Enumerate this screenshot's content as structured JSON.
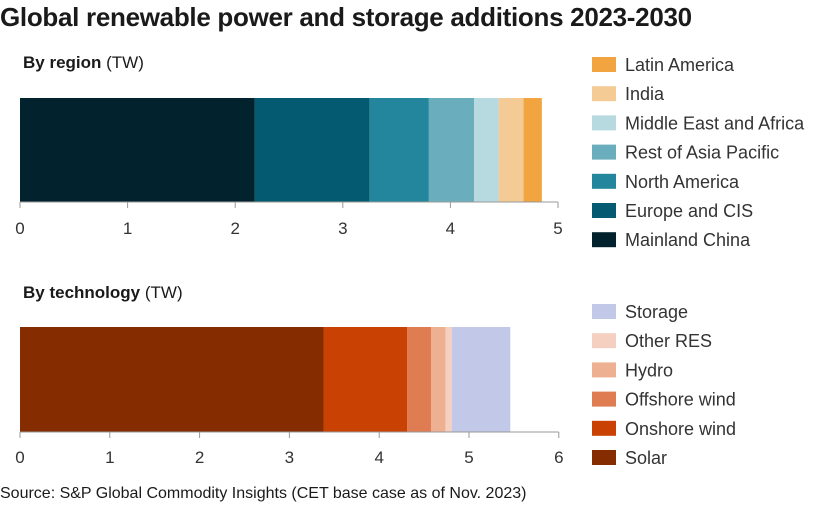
{
  "title": "Global renewable power and storage additions 2023-2030",
  "source": "Source: S&P Global Commodity Insights (CET base case as of Nov. 2023)",
  "chart_data": [
    {
      "type": "bar",
      "orientation": "horizontal",
      "stacked": true,
      "title": "By region",
      "unit": "(TW)",
      "xlim": [
        0,
        5
      ],
      "ticks": [
        "0",
        "1",
        "2",
        "3",
        "4",
        "5"
      ],
      "legend_position": "right",
      "series": [
        {
          "name": "Mainland China",
          "value": 2.18,
          "color": "#02222d"
        },
        {
          "name": "Europe and CIS",
          "value": 1.07,
          "color": "#045a70"
        },
        {
          "name": "North America",
          "value": 0.55,
          "color": "#24869c"
        },
        {
          "name": "Rest of Asia Pacific",
          "value": 0.42,
          "color": "#6aaebd"
        },
        {
          "name": "Middle East and Africa",
          "value": 0.23,
          "color": "#b7d9e0"
        },
        {
          "name": "India",
          "value": 0.23,
          "color": "#f5cb95"
        },
        {
          "name": "Latin America",
          "value": 0.17,
          "color": "#f2a440"
        }
      ]
    },
    {
      "type": "bar",
      "orientation": "horizontal",
      "stacked": true,
      "title": "By technology",
      "unit": "(TW)",
      "xlim": [
        0,
        6
      ],
      "ticks": [
        "0",
        "1",
        "2",
        "3",
        "4",
        "5",
        "6"
      ],
      "legend_position": "right",
      "series": [
        {
          "name": "Solar",
          "value": 3.38,
          "color": "#852c00"
        },
        {
          "name": "Onshore wind",
          "value": 0.93,
          "color": "#c94103"
        },
        {
          "name": "Offshore wind",
          "value": 0.27,
          "color": "#e07c51"
        },
        {
          "name": "Hydro",
          "value": 0.16,
          "color": "#edb091"
        },
        {
          "name": "Other RES",
          "value": 0.07,
          "color": "#f5cfc0"
        },
        {
          "name": "Storage",
          "value": 0.65,
          "color": "#c1c8e8"
        }
      ]
    }
  ]
}
